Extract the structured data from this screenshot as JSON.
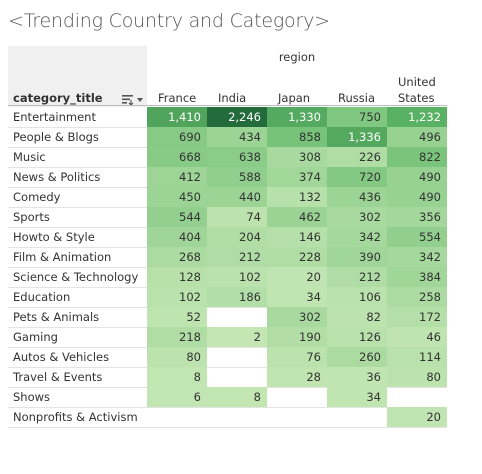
{
  "title": "<Trending Country and Category>",
  "row_header": "category_title",
  "column_group_label": "region",
  "sort_icon": "sort-descending-icon",
  "colors": {
    "low": "#c3e6b3",
    "mid": "#5fb868",
    "high": "#236b3a",
    "text_dark": "#333333",
    "text_light": "#ffffff"
  },
  "chart_data": {
    "type": "heatmap",
    "title": "<Trending Country and Category>",
    "xlabel": "region",
    "ylabel": "category_title",
    "columns": [
      "France",
      "India",
      "Japan",
      "Russia",
      "United States"
    ],
    "column_labels": [
      [
        "France"
      ],
      [
        "India"
      ],
      [
        "Japan"
      ],
      [
        "Russia"
      ],
      [
        "United",
        "States"
      ]
    ],
    "rows": [
      {
        "category": "Entertainment",
        "values": [
          1410,
          2246,
          1330,
          750,
          1232
        ],
        "labels": [
          "1,410",
          "2,246",
          "1,330",
          "750",
          "1,232"
        ]
      },
      {
        "category": "People & Blogs",
        "values": [
          690,
          434,
          858,
          1336,
          496
        ],
        "labels": [
          "690",
          "434",
          "858",
          "1,336",
          "496"
        ]
      },
      {
        "category": "Music",
        "values": [
          668,
          638,
          308,
          226,
          822
        ],
        "labels": [
          "668",
          "638",
          "308",
          "226",
          "822"
        ]
      },
      {
        "category": "News & Politics",
        "values": [
          412,
          588,
          374,
          720,
          490
        ],
        "labels": [
          "412",
          "588",
          "374",
          "720",
          "490"
        ]
      },
      {
        "category": "Comedy",
        "values": [
          450,
          440,
          132,
          436,
          490
        ],
        "labels": [
          "450",
          "440",
          "132",
          "436",
          "490"
        ]
      },
      {
        "category": "Sports",
        "values": [
          544,
          74,
          462,
          302,
          356
        ],
        "labels": [
          "544",
          "74",
          "462",
          "302",
          "356"
        ]
      },
      {
        "category": "Howto & Style",
        "values": [
          404,
          204,
          146,
          342,
          554
        ],
        "labels": [
          "404",
          "204",
          "146",
          "342",
          "554"
        ]
      },
      {
        "category": "Film & Animation",
        "values": [
          268,
          212,
          228,
          390,
          342
        ],
        "labels": [
          "268",
          "212",
          "228",
          "390",
          "342"
        ]
      },
      {
        "category": "Science & Technology",
        "values": [
          128,
          102,
          20,
          212,
          384
        ],
        "labels": [
          "128",
          "102",
          "20",
          "212",
          "384"
        ]
      },
      {
        "category": "Education",
        "values": [
          102,
          186,
          34,
          106,
          258
        ],
        "labels": [
          "102",
          "186",
          "34",
          "106",
          "258"
        ]
      },
      {
        "category": "Pets & Animals",
        "values": [
          52,
          null,
          302,
          82,
          172
        ],
        "labels": [
          "52",
          "",
          "302",
          "82",
          "172"
        ]
      },
      {
        "category": "Gaming",
        "values": [
          218,
          2,
          190,
          126,
          46
        ],
        "labels": [
          "218",
          "2",
          "190",
          "126",
          "46"
        ]
      },
      {
        "category": "Autos & Vehicles",
        "values": [
          80,
          null,
          76,
          260,
          114
        ],
        "labels": [
          "80",
          "",
          "76",
          "260",
          "114"
        ]
      },
      {
        "category": "Travel & Events",
        "values": [
          8,
          null,
          28,
          36,
          80
        ],
        "labels": [
          "8",
          "",
          "28",
          "36",
          "80"
        ]
      },
      {
        "category": "Shows",
        "values": [
          6,
          8,
          null,
          34,
          null
        ],
        "labels": [
          "6",
          "8",
          "",
          "34",
          ""
        ]
      },
      {
        "category": "Nonprofits & Activism",
        "values": [
          null,
          null,
          null,
          null,
          20
        ],
        "labels": [
          "",
          "",
          "",
          "",
          "20"
        ]
      }
    ]
  }
}
